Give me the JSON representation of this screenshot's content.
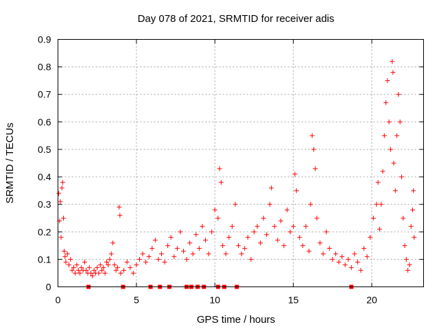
{
  "chart_data": {
    "type": "scatter",
    "title": "Day 078 of 2021, SRMTID for receiver adis",
    "xlabel": "GPS time / hours",
    "ylabel": "SRMTID / TECUs",
    "xlim": [
      0,
      23.3
    ],
    "ylim": [
      0,
      0.9
    ],
    "xticks": [
      0,
      5,
      10,
      15,
      20
    ],
    "xtick_labels": [
      "0",
      "5",
      "10",
      "15",
      "20"
    ],
    "yticks": [
      0,
      0.1,
      0.2,
      0.3,
      0.4,
      0.5,
      0.6,
      0.7,
      0.8,
      0.9
    ],
    "ytick_labels": [
      "0",
      "0.1",
      "0.2",
      "0.3",
      "0.4",
      "0.5",
      "0.6",
      "0.7",
      "0.8",
      "0.9"
    ],
    "grid": true,
    "marker": "plus",
    "color": "#ff0000",
    "series": [
      {
        "name": "SRMTID",
        "points": [
          [
            0.05,
            0.34
          ],
          [
            0.1,
            0.24
          ],
          [
            0.15,
            0.31
          ],
          [
            0.2,
            0.18
          ],
          [
            0.25,
            0.36
          ],
          [
            0.3,
            0.38
          ],
          [
            0.35,
            0.25
          ],
          [
            0.4,
            0.13
          ],
          [
            0.45,
            0.11
          ],
          [
            0.5,
            0.09
          ],
          [
            0.6,
            0.12
          ],
          [
            0.7,
            0.08
          ],
          [
            0.8,
            0.1
          ],
          [
            0.9,
            0.06
          ],
          [
            1.0,
            0.07
          ],
          [
            1.1,
            0.05
          ],
          [
            1.2,
            0.08
          ],
          [
            1.3,
            0.06
          ],
          [
            1.4,
            0.05
          ],
          [
            1.5,
            0.07
          ],
          [
            1.6,
            0.06
          ],
          [
            1.7,
            0.09
          ],
          [
            1.8,
            0.06
          ],
          [
            1.9,
            0.05
          ],
          [
            2.0,
            0.07
          ],
          [
            2.1,
            0.05
          ],
          [
            2.2,
            0.04
          ],
          [
            2.3,
            0.06
          ],
          [
            2.4,
            0.05
          ],
          [
            2.5,
            0.07
          ],
          [
            2.6,
            0.05
          ],
          [
            2.7,
            0.08
          ],
          [
            2.8,
            0.06
          ],
          [
            2.9,
            0.07
          ],
          [
            3.0,
            0.05
          ],
          [
            3.1,
            0.09
          ],
          [
            3.2,
            0.08
          ],
          [
            3.3,
            0.1
          ],
          [
            3.4,
            0.12
          ],
          [
            3.5,
            0.16
          ],
          [
            3.6,
            0.08
          ],
          [
            3.7,
            0.06
          ],
          [
            3.8,
            0.07
          ],
          [
            3.9,
            0.29
          ],
          [
            3.95,
            0.26
          ],
          [
            4.0,
            0.05
          ],
          [
            4.2,
            0.06
          ],
          [
            4.4,
            0.09
          ],
          [
            4.6,
            0.07
          ],
          [
            4.8,
            0.05
          ],
          [
            5.0,
            0.08
          ],
          [
            5.2,
            0.1
          ],
          [
            5.4,
            0.12
          ],
          [
            5.6,
            0.09
          ],
          [
            5.8,
            0.11
          ],
          [
            6.0,
            0.14
          ],
          [
            6.2,
            0.17
          ],
          [
            6.4,
            0.1
          ],
          [
            6.6,
            0.12
          ],
          [
            6.8,
            0.09
          ],
          [
            7.0,
            0.15
          ],
          [
            7.2,
            0.18
          ],
          [
            7.4,
            0.11
          ],
          [
            7.6,
            0.14
          ],
          [
            7.8,
            0.2
          ],
          [
            8.0,
            0.13
          ],
          [
            8.2,
            0.1
          ],
          [
            8.4,
            0.16
          ],
          [
            8.6,
            0.12
          ],
          [
            8.8,
            0.19
          ],
          [
            9.0,
            0.14
          ],
          [
            9.2,
            0.22
          ],
          [
            9.4,
            0.17
          ],
          [
            9.6,
            0.12
          ],
          [
            9.8,
            0.2
          ],
          [
            10.0,
            0.28
          ],
          [
            10.2,
            0.25
          ],
          [
            10.3,
            0.43
          ],
          [
            10.4,
            0.38
          ],
          [
            10.5,
            0.15
          ],
          [
            10.7,
            0.12
          ],
          [
            10.9,
            0.18
          ],
          [
            11.1,
            0.22
          ],
          [
            11.3,
            0.3
          ],
          [
            11.5,
            0.15
          ],
          [
            11.7,
            0.12
          ],
          [
            11.9,
            0.14
          ],
          [
            12.1,
            0.18
          ],
          [
            12.3,
            0.1
          ],
          [
            12.5,
            0.2
          ],
          [
            12.7,
            0.22
          ],
          [
            12.9,
            0.16
          ],
          [
            13.1,
            0.25
          ],
          [
            13.3,
            0.19
          ],
          [
            13.5,
            0.3
          ],
          [
            13.6,
            0.36
          ],
          [
            13.8,
            0.22
          ],
          [
            14.0,
            0.17
          ],
          [
            14.2,
            0.24
          ],
          [
            14.4,
            0.15
          ],
          [
            14.6,
            0.28
          ],
          [
            14.8,
            0.2
          ],
          [
            15.0,
            0.22
          ],
          [
            15.1,
            0.41
          ],
          [
            15.2,
            0.35
          ],
          [
            15.4,
            0.18
          ],
          [
            15.6,
            0.15
          ],
          [
            15.8,
            0.22
          ],
          [
            16.0,
            0.13
          ],
          [
            16.1,
            0.3
          ],
          [
            16.2,
            0.55
          ],
          [
            16.3,
            0.5
          ],
          [
            16.4,
            0.43
          ],
          [
            16.5,
            0.25
          ],
          [
            16.7,
            0.16
          ],
          [
            16.9,
            0.12
          ],
          [
            17.1,
            0.2
          ],
          [
            17.3,
            0.14
          ],
          [
            17.5,
            0.1
          ],
          [
            17.7,
            0.12
          ],
          [
            17.9,
            0.09
          ],
          [
            18.1,
            0.11
          ],
          [
            18.3,
            0.08
          ],
          [
            18.5,
            0.1
          ],
          [
            18.7,
            0.07
          ],
          [
            18.9,
            0.12
          ],
          [
            19.1,
            0.09
          ],
          [
            19.3,
            0.06
          ],
          [
            19.5,
            0.14
          ],
          [
            19.7,
            0.11
          ],
          [
            19.9,
            0.18
          ],
          [
            20.1,
            0.25
          ],
          [
            20.3,
            0.3
          ],
          [
            20.4,
            0.38
          ],
          [
            20.5,
            0.21
          ],
          [
            20.6,
            0.3
          ],
          [
            20.7,
            0.42
          ],
          [
            20.8,
            0.55
          ],
          [
            20.9,
            0.67
          ],
          [
            21.0,
            0.75
          ],
          [
            21.1,
            0.6
          ],
          [
            21.2,
            0.5
          ],
          [
            21.3,
            0.82
          ],
          [
            21.35,
            0.78
          ],
          [
            21.4,
            0.45
          ],
          [
            21.5,
            0.35
          ],
          [
            21.6,
            0.55
          ],
          [
            21.7,
            0.7
          ],
          [
            21.8,
            0.6
          ],
          [
            21.9,
            0.4
          ],
          [
            22.0,
            0.25
          ],
          [
            22.1,
            0.15
          ],
          [
            22.2,
            0.1
          ],
          [
            22.3,
            0.06
          ],
          [
            22.4,
            0.08
          ],
          [
            22.5,
            0.22
          ],
          [
            22.6,
            0.28
          ],
          [
            22.65,
            0.35
          ],
          [
            22.7,
            0.18
          ]
        ]
      }
    ],
    "gap_markers_x": [
      1.95,
      4.15,
      5.9,
      6.5,
      7.1,
      8.2,
      8.5,
      8.9,
      9.3,
      10.2,
      10.6,
      11.4,
      18.7
    ]
  }
}
